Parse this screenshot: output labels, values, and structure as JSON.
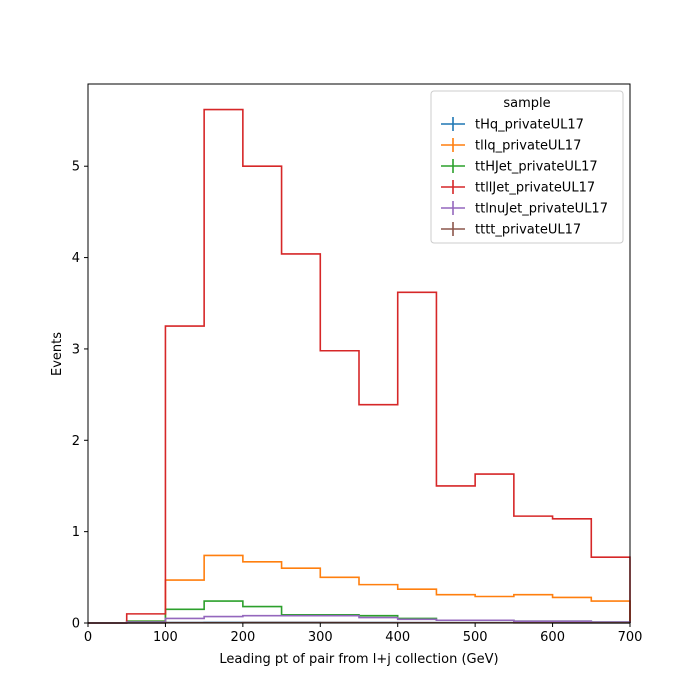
{
  "chart_data": {
    "type": "step",
    "xlabel": "Leading pt of pair from l+j collection (GeV)",
    "ylabel": "Events",
    "xlim": [
      0,
      700
    ],
    "ylim": [
      0,
      5.9
    ],
    "xticks": [
      "0",
      "100",
      "200",
      "300",
      "400",
      "500",
      "600",
      "700"
    ],
    "yticks": [
      "0",
      "1",
      "2",
      "3",
      "4",
      "5"
    ],
    "grid": false,
    "legend": {
      "title": "sample",
      "placement": "top-right"
    },
    "bin_edges": [
      0,
      50,
      100,
      150,
      200,
      250,
      300,
      350,
      400,
      450,
      500,
      550,
      600,
      650,
      700
    ],
    "series": [
      {
        "name": "tHq_privateUL17",
        "color": "#1f77b4",
        "values": [
          0,
          0.002,
          0.005,
          0.006,
          0.006,
          0.006,
          0.005,
          0.005,
          0.004,
          0.004,
          0.003,
          0.003,
          0.002,
          0.002
        ]
      },
      {
        "name": "tllq_privateUL17",
        "color": "#ff7f0e",
        "values": [
          0,
          0.02,
          0.47,
          0.74,
          0.67,
          0.6,
          0.5,
          0.42,
          0.37,
          0.31,
          0.29,
          0.31,
          0.28,
          0.24
        ]
      },
      {
        "name": "ttHJet_privateUL17",
        "color": "#2ca02c",
        "values": [
          0,
          0.02,
          0.15,
          0.24,
          0.18,
          0.09,
          0.09,
          0.08,
          0.05,
          0.03,
          0.03,
          0.02,
          0.02,
          0.01
        ]
      },
      {
        "name": "ttllJet_privateUL17",
        "color": "#d62728",
        "values": [
          0,
          0.1,
          3.25,
          5.62,
          5.0,
          4.04,
          2.98,
          2.39,
          3.62,
          1.5,
          1.63,
          1.17,
          1.14,
          0.72
        ]
      },
      {
        "name": "ttlnuJet_privateUL17",
        "color": "#9467bd",
        "values": [
          0,
          0.01,
          0.05,
          0.07,
          0.08,
          0.08,
          0.08,
          0.06,
          0.04,
          0.03,
          0.03,
          0.02,
          0.02,
          0.01
        ]
      },
      {
        "name": "tttt_privateUL17",
        "color": "#8c564b",
        "values": [
          0,
          0.001,
          0.003,
          0.004,
          0.005,
          0.005,
          0.005,
          0.004,
          0.004,
          0.003,
          0.003,
          0.002,
          0.002,
          0.002
        ]
      }
    ]
  }
}
